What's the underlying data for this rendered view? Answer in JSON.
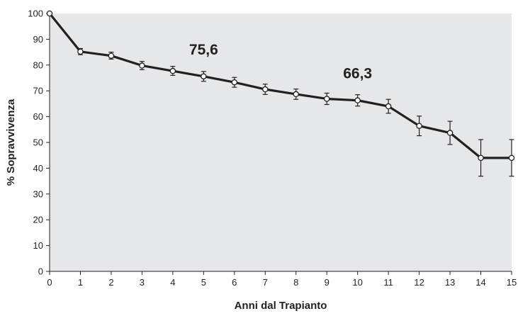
{
  "chart_data": {
    "type": "line",
    "xlabel": "Anni dal Trapianto",
    "ylabel": "% Sopravvivenza",
    "xlim": [
      0,
      15
    ],
    "ylim": [
      0,
      100
    ],
    "x_ticks": [
      0,
      1,
      2,
      3,
      4,
      5,
      6,
      7,
      8,
      9,
      10,
      11,
      12,
      13,
      14,
      15
    ],
    "y_ticks": [
      0,
      10,
      20,
      30,
      40,
      50,
      60,
      70,
      80,
      90,
      100
    ],
    "grid": false,
    "background_color": "#e6e7e8",
    "line_color": "#231f20",
    "series": [
      {
        "x": [
          0,
          1,
          2,
          3,
          4,
          5,
          6,
          7,
          8,
          9,
          10,
          11,
          12,
          13,
          14,
          15
        ],
        "y": [
          100,
          85.2,
          83.6,
          79.8,
          77.7,
          75.6,
          73.3,
          70.6,
          68.7,
          66.9,
          66.3,
          64.0,
          56.4,
          53.7,
          44.0,
          44.0
        ],
        "error_low": [
          100,
          84.0,
          82.3,
          78.2,
          76.0,
          73.7,
          71.4,
          68.6,
          66.7,
          64.7,
          64.1,
          61.3,
          52.6,
          49.2,
          36.9,
          36.9
        ],
        "error_high": [
          100,
          86.4,
          85.0,
          81.4,
          79.5,
          77.5,
          75.2,
          72.6,
          70.7,
          69.1,
          68.5,
          66.7,
          60.2,
          58.2,
          51.1,
          51.1
        ]
      }
    ],
    "annotations": [
      {
        "text": "75,6",
        "x": 5,
        "y": 75.6
      },
      {
        "text": "66,3",
        "x": 10,
        "y": 66.3
      }
    ]
  }
}
